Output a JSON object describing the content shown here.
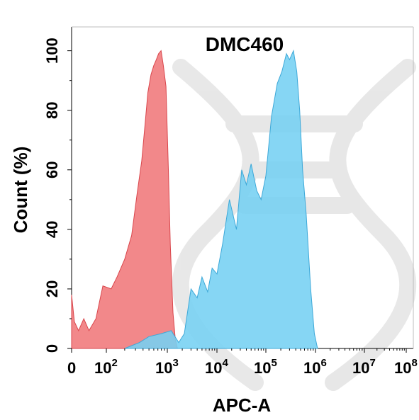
{
  "chart_data": {
    "type": "area",
    "title": "DMC460",
    "xlabel": "APC-A",
    "ylabel": "Count  (%)",
    "x_scale": "biexponential",
    "xlim": [
      0,
      100000000
    ],
    "ylim": [
      0,
      108
    ],
    "y_ticks": [
      "0",
      "20",
      "40",
      "60",
      "80",
      "100"
    ],
    "x_ticks": [
      {
        "base": "0",
        "exp": ""
      },
      {
        "base": "10",
        "exp": "2"
      },
      {
        "base": "10",
        "exp": "3"
      },
      {
        "base": "10",
        "exp": "4"
      },
      {
        "base": "10",
        "exp": "5"
      },
      {
        "base": "10",
        "exp": "6"
      },
      {
        "base": "10",
        "exp": "7"
      },
      {
        "base": "10",
        "exp": "8"
      }
    ],
    "grid": false,
    "series": [
      {
        "color": "#F0787A",
        "stroke": "#D9464C",
        "points": [
          [
            0,
            18
          ],
          [
            8,
            9
          ],
          [
            20,
            6
          ],
          [
            35,
            10
          ],
          [
            50,
            6
          ],
          [
            70,
            10
          ],
          [
            90,
            21
          ],
          [
            120,
            20
          ],
          [
            150,
            24
          ],
          [
            200,
            30
          ],
          [
            260,
            38
          ],
          [
            320,
            52
          ],
          [
            380,
            63
          ],
          [
            430,
            75
          ],
          [
            480,
            86
          ],
          [
            540,
            92
          ],
          [
            600,
            95
          ],
          [
            660,
            97
          ],
          [
            720,
            99
          ],
          [
            790,
            100
          ],
          [
            860,
            95
          ],
          [
            950,
            88
          ],
          [
            1050,
            60
          ],
          [
            1150,
            35
          ],
          [
            1300,
            12
          ],
          [
            1450,
            3
          ],
          [
            1600,
            0
          ]
        ]
      },
      {
        "color": "#75D0F3",
        "stroke": "#3DA8D8",
        "points": [
          [
            200,
            0
          ],
          [
            350,
            2
          ],
          [
            500,
            4
          ],
          [
            800,
            5
          ],
          [
            1200,
            6
          ],
          [
            1700,
            2
          ],
          [
            2200,
            5
          ],
          [
            3000,
            20
          ],
          [
            4000,
            17
          ],
          [
            5000,
            24
          ],
          [
            6500,
            19
          ],
          [
            8000,
            27
          ],
          [
            10000,
            25
          ],
          [
            13000,
            35
          ],
          [
            18000,
            50
          ],
          [
            25000,
            40
          ],
          [
            32000,
            60
          ],
          [
            40000,
            55
          ],
          [
            50000,
            62
          ],
          [
            65000,
            53
          ],
          [
            80000,
            50
          ],
          [
            100000,
            58
          ],
          [
            130000,
            78
          ],
          [
            170000,
            89
          ],
          [
            210000,
            93
          ],
          [
            260000,
            99
          ],
          [
            300000,
            97
          ],
          [
            360000,
            100
          ],
          [
            420000,
            93
          ],
          [
            480000,
            80
          ],
          [
            550000,
            60
          ],
          [
            650000,
            45
          ],
          [
            800000,
            20
          ],
          [
            950000,
            5
          ],
          [
            1100000,
            0
          ]
        ]
      }
    ]
  }
}
